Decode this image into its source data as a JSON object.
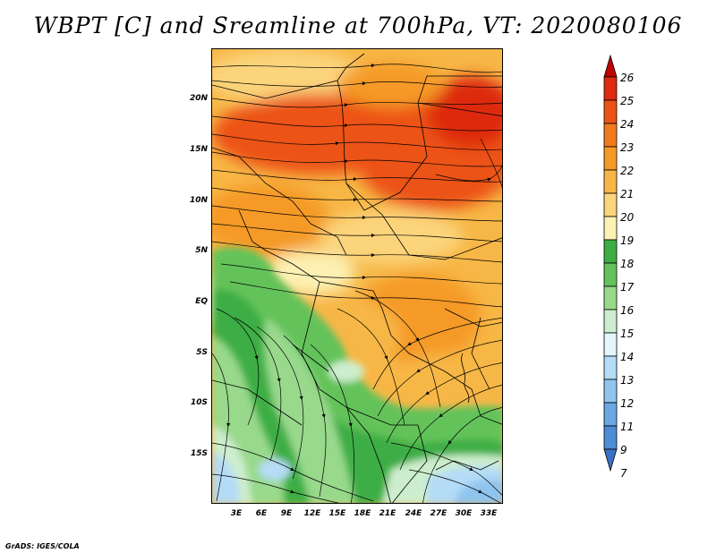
{
  "title": "WBPT [C] and Sreamline at 700hPa, VT: 2020080106",
  "credit": "GrADS: IGES/COLA",
  "lat_ticks": [
    "20N",
    "15N",
    "10N",
    "5N",
    "EQ",
    "5S",
    "10S",
    "15S"
  ],
  "lon_ticks": [
    "3E",
    "6E",
    "9E",
    "12E",
    "15E",
    "18E",
    "21E",
    "24E",
    "27E",
    "30E",
    "33E"
  ],
  "colorbar": {
    "labels": [
      "26",
      "25",
      "24",
      "23",
      "22",
      "21",
      "20",
      "19",
      "18",
      "17",
      "16",
      "15",
      "14",
      "13",
      "12",
      "11",
      "9",
      "7"
    ],
    "colors": [
      "#c00000",
      "#dd2a10",
      "#ec5316",
      "#f17a1d",
      "#f59a26",
      "#f7b746",
      "#fbd47c",
      "#fdf0b3",
      "#3cae44",
      "#64c35a",
      "#98d98c",
      "#cdeece",
      "#e2f6fb",
      "#b5dcf6",
      "#8fc4ee",
      "#6aa7e3",
      "#4e8cd6",
      "#3a6fc7"
    ]
  },
  "regions": {
    "hot_north_colors": [
      "#f7b746",
      "#f59a26",
      "#ec5316",
      "#fbd47c",
      "#fdf0b3"
    ],
    "cool_south_colors": [
      "#3cae44",
      "#64c35a",
      "#98d98c",
      "#cdeece",
      "#b5dcf6",
      "#8fc4ee"
    ]
  }
}
